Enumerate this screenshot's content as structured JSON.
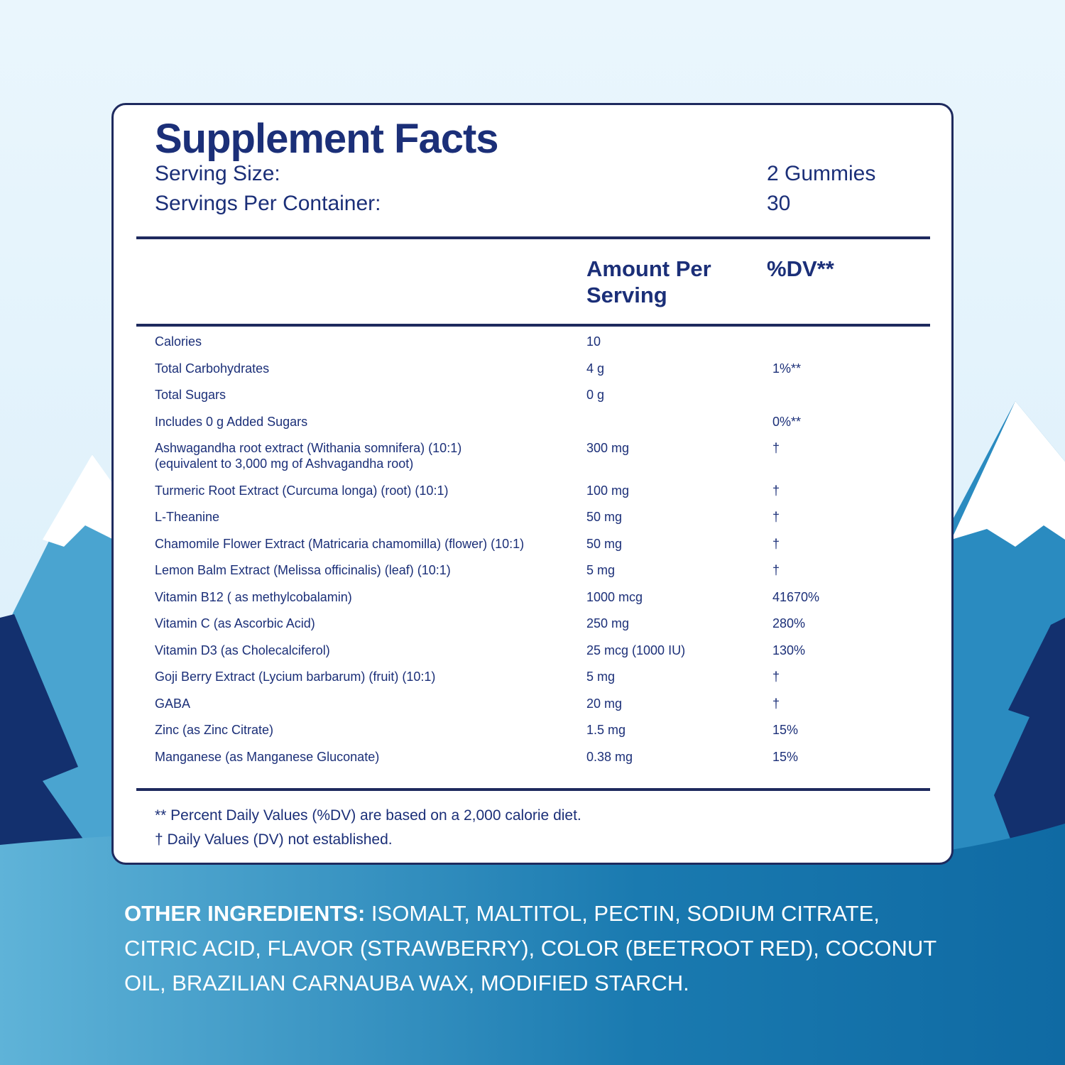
{
  "header": {
    "title": "Supplement Facts",
    "serving_size_label": "Serving Size:",
    "serving_size": "2 Gummies",
    "servings_label": "Servings Per Container:",
    "servings": "30"
  },
  "table": {
    "columns": [
      "Amount Per Serving",
      "%DV**"
    ],
    "rows": [
      {
        "name": "Calories",
        "amount": "10"
      },
      {
        "name": "Total Carbohydrates",
        "amount": "4 g",
        "dv": "1%**"
      },
      {
        "name": "Total Sugars",
        "amount": "0 g"
      },
      {
        "name": "Includes 0 g Added Sugars",
        "dv": "0%**"
      },
      {
        "name": "Ashwagandha root extract (Withania somnifera) (10:1)",
        "subname": "(equivalent to 3,000 mg of Ashvagandha root)",
        "amount": "300 mg",
        "dv": "†"
      },
      {
        "name": "Turmeric Root Extract (Curcuma longa) (root) (10:1)",
        "amount": "100 mg",
        "dv": "†"
      },
      {
        "name": "L-Theanine",
        "amount": "50 mg",
        "dv": "†"
      },
      {
        "name": "Chamomile Flower Extract (Matricaria chamomilla) (flower) (10:1)",
        "amount": "50 mg",
        "dv": "†"
      },
      {
        "name": "Lemon Balm Extract (Melissa officinalis) (leaf) (10:1)",
        "amount": "5 mg",
        "dv": "†"
      },
      {
        "name": "Vitamin B12 ( as methylcobalamin)",
        "amount": "1000 mcg",
        "dv": "41670%"
      },
      {
        "name": "Vitamin C (as Ascorbic Acid)",
        "amount": "250 mg",
        "dv": "280%"
      },
      {
        "name": "Vitamin D3 (as Cholecalciferol)",
        "amount": "25 mcg (1000 IU)",
        "dv": "130%"
      },
      {
        "name": "Goji Berry Extract (Lycium barbarum) (fruit) (10:1)",
        "amount": "5 mg",
        "dv": "†"
      },
      {
        "name": "GABA",
        "amount": "20 mg",
        "dv": "†"
      },
      {
        "name": "Zinc (as Zinc Citrate)",
        "amount": "1.5 mg",
        "dv": "15%"
      },
      {
        "name": "Manganese (as Manganese Gluconate)",
        "amount": "0.38 mg",
        "dv": "15%"
      }
    ]
  },
  "footnotes": [
    "** Percent Daily Values (%DV) are based on a 2,000 calorie diet.",
    "† Daily Values (DV) not established."
  ],
  "other_ingredients": {
    "label": "OTHER INGREDIENTS:",
    "text": "ISOMALT, MALTITOL, PECTIN, SODIUM CITRATE, CITRIC ACID, FLAVOR (STRAWBERRY), COLOR (BEETROOT RED), COCONUT OIL, BRAZILIAN CARNAUBA WAX, MODIFIED STARCH."
  }
}
